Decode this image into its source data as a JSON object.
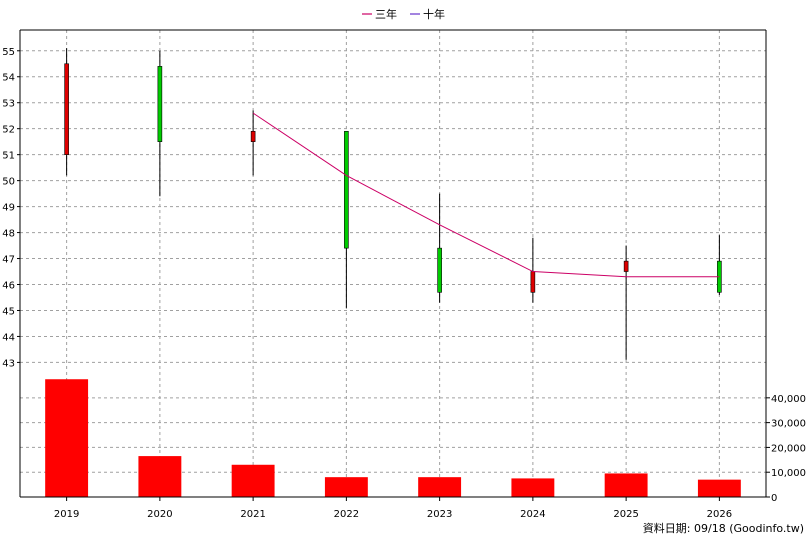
{
  "legend": {
    "items": [
      {
        "label": "三年",
        "color": "#cc0066"
      },
      {
        "label": "十年",
        "color": "#6633cc"
      }
    ]
  },
  "footer": {
    "data_date": "資料日期: 09/18  (Goodinfo.tw)"
  },
  "chart_data": [
    {
      "type": "candlestick",
      "categories": [
        "2019",
        "2020",
        "2021",
        "2022",
        "2023",
        "2024",
        "2025",
        "2026"
      ],
      "ylim": [
        42.4,
        55.8
      ],
      "yticks": [
        43,
        44,
        45,
        46,
        47,
        48,
        49,
        50,
        51,
        52,
        53,
        54,
        55
      ],
      "grid": true,
      "candles": [
        {
          "x": "2019",
          "open": 54.5,
          "close": 51.0,
          "high": 55.1,
          "low": 50.2,
          "color": "#dd0000"
        },
        {
          "x": "2020",
          "open": 51.5,
          "close": 54.4,
          "high": 55.0,
          "low": 49.4,
          "color": "#00cc00"
        },
        {
          "x": "2021",
          "open": 51.9,
          "close": 51.5,
          "high": 52.7,
          "low": 50.2,
          "color": "#dd0000"
        },
        {
          "x": "2022",
          "open": 47.4,
          "close": 51.9,
          "high": 51.9,
          "low": 45.1,
          "color": "#00cc00"
        },
        {
          "x": "2023",
          "open": 45.7,
          "close": 47.4,
          "high": 49.5,
          "low": 45.3,
          "color": "#00cc00"
        },
        {
          "x": "2024",
          "open": 46.5,
          "close": 45.7,
          "high": 47.8,
          "low": 45.3,
          "color": "#dd0000"
        },
        {
          "x": "2025",
          "open": 46.9,
          "close": 46.5,
          "high": 47.5,
          "low": 43.1,
          "color": "#dd0000"
        },
        {
          "x": "2026",
          "open": 45.7,
          "close": 46.9,
          "high": 47.9,
          "low": 45.6,
          "color": "#00cc00"
        }
      ],
      "series": [
        {
          "name": "三年",
          "color": "#cc0066",
          "points": [
            {
              "x": "2021",
              "y": 52.6
            },
            {
              "x": "2022",
              "y": 50.2
            },
            {
              "x": "2023",
              "y": 48.3
            },
            {
              "x": "2024",
              "y": 46.5
            },
            {
              "x": "2025",
              "y": 46.3
            },
            {
              "x": "2026",
              "y": 46.3
            }
          ]
        }
      ]
    },
    {
      "type": "bar",
      "categories": [
        "2019",
        "2020",
        "2021",
        "2022",
        "2023",
        "2024",
        "2025",
        "2026"
      ],
      "values": [
        47500,
        16500,
        13000,
        8000,
        8000,
        7500,
        9500,
        7000
      ],
      "ylim": [
        0,
        48000
      ],
      "yticks": [
        0,
        10000,
        20000,
        30000,
        40000
      ],
      "ytick_labels": [
        "0",
        "10,000",
        "20,000",
        "30,000",
        "40,000"
      ],
      "color": "#ff0000",
      "grid": true
    }
  ]
}
